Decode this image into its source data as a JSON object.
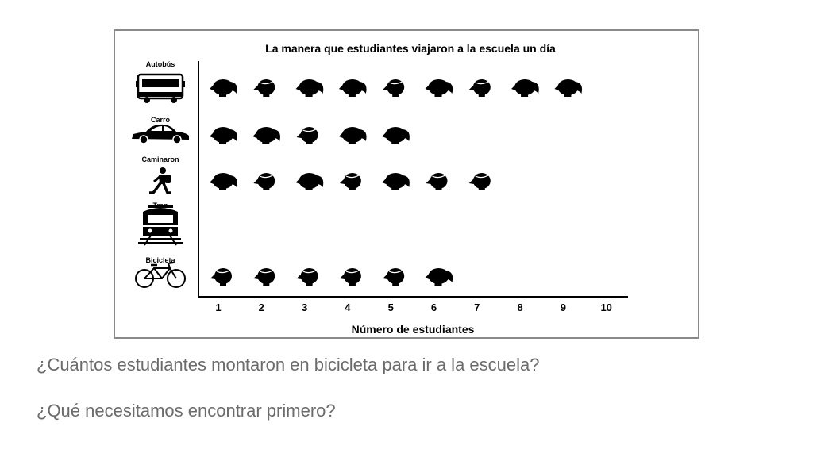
{
  "chart_data": {
    "type": "pictograph",
    "title": "La manera que estudiantes viajaron a la escuela un día",
    "xlabel": "Número de estudiantes",
    "xticks": [
      "1",
      "2",
      "3",
      "4",
      "5",
      "6",
      "7",
      "8",
      "9",
      "10"
    ],
    "xlim": [
      1,
      10
    ],
    "categories": [
      {
        "label": "Autobús",
        "icon": "bus-icon",
        "value": 9
      },
      {
        "label": "Carro",
        "icon": "car-icon",
        "value": 5
      },
      {
        "label": "Caminaron",
        "icon": "walking-person-icon",
        "value": 7
      },
      {
        "label": "Tren",
        "icon": "train-icon",
        "value": 0
      },
      {
        "label": "Bicicleta",
        "icon": "bicycle-icon",
        "value": 6
      }
    ],
    "symbol": "student-head-icon"
  },
  "questions": [
    "¿Cuántos estudiantes montaron en bicicleta para ir a la escuela?",
    "¿Qué necesitamos encontrar primero?"
  ]
}
